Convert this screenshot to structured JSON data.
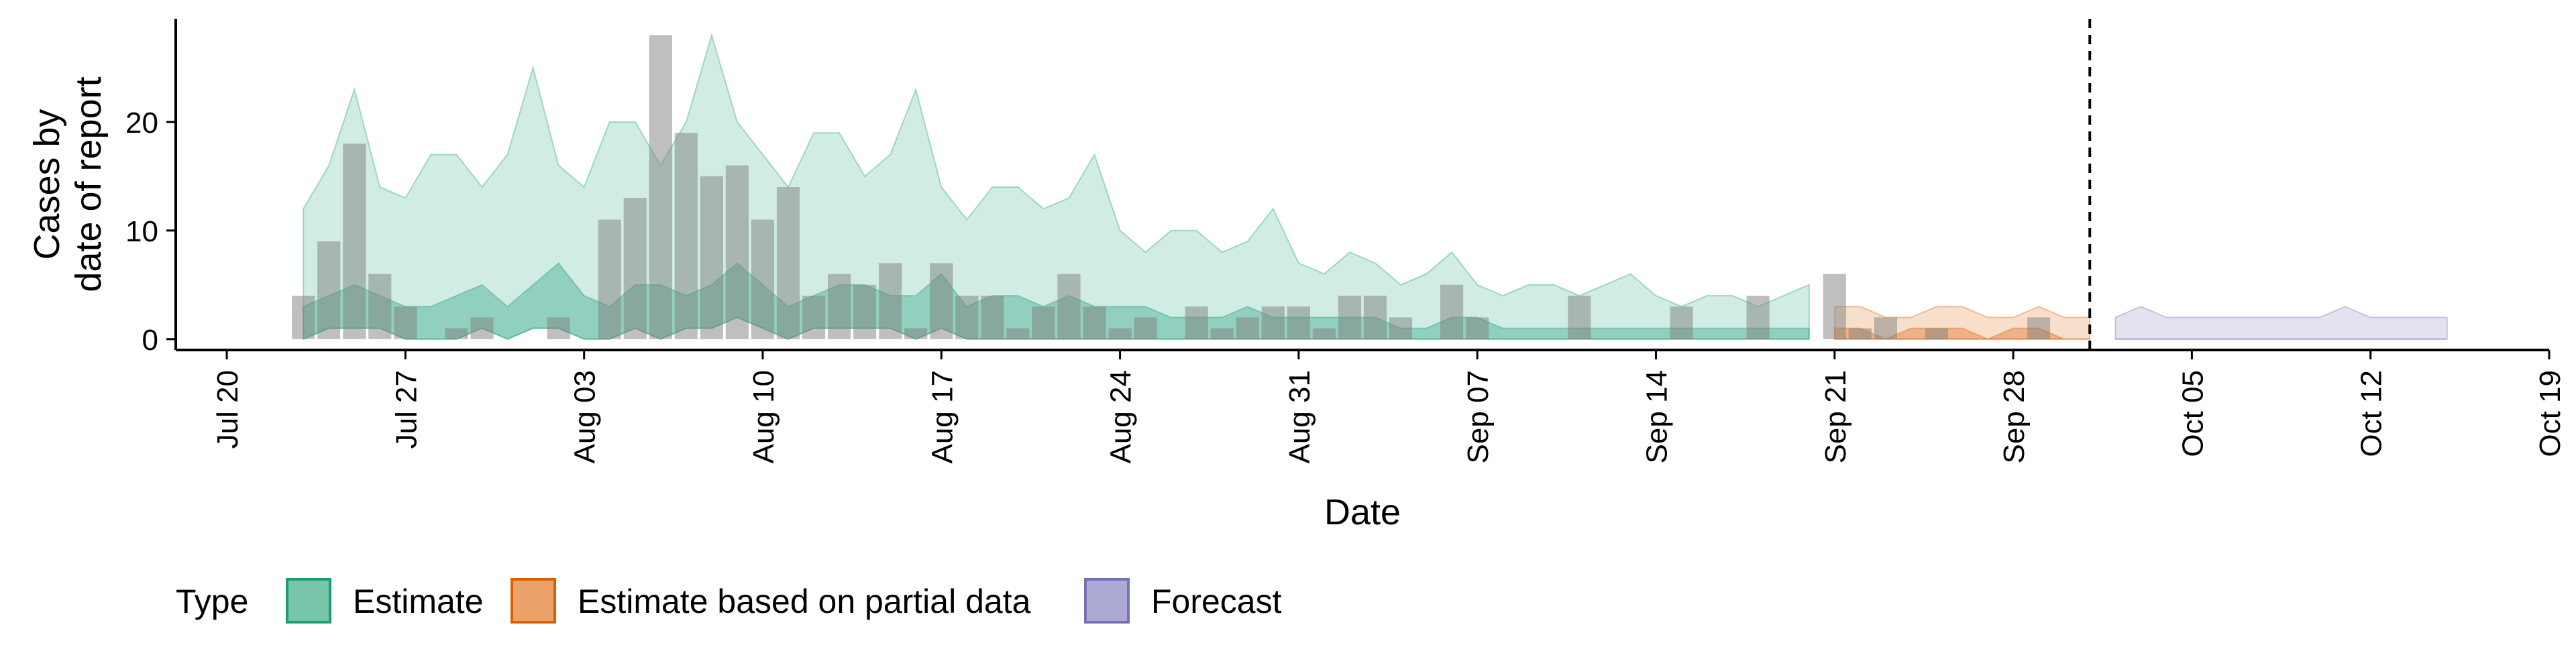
{
  "chart_data": {
    "type": "area",
    "xlabel": "Date",
    "ylabel_lines": [
      "Cases by",
      "date of report"
    ],
    "x_ticks": [
      "Jul 20",
      "Jul 27",
      "Aug 03",
      "Aug 10",
      "Aug 17",
      "Aug 24",
      "Aug 31",
      "Sep 07",
      "Sep 14",
      "Sep 21",
      "Sep 28",
      "Oct 05",
      "Oct 12",
      "Oct 19"
    ],
    "x_tick_dates": [
      "2020-07-20",
      "2020-07-27",
      "2020-08-03",
      "2020-08-10",
      "2020-08-17",
      "2020-08-24",
      "2020-08-31",
      "2020-09-07",
      "2020-09-14",
      "2020-09-21",
      "2020-09-28",
      "2020-10-05",
      "2020-10-12",
      "2020-10-19"
    ],
    "y_ticks": [
      0,
      10,
      20
    ],
    "xlim": [
      "2020-07-18",
      "2020-10-19"
    ],
    "ylim": [
      -1,
      29.5
    ],
    "forecast_date": "2020-10-01",
    "reported_cases": {
      "dates": [
        "2020-07-23",
        "2020-07-24",
        "2020-07-25",
        "2020-07-26",
        "2020-07-27",
        "2020-07-28",
        "2020-07-29",
        "2020-07-30",
        "2020-07-31",
        "2020-08-01",
        "2020-08-02",
        "2020-08-03",
        "2020-08-04",
        "2020-08-05",
        "2020-08-06",
        "2020-08-07",
        "2020-08-08",
        "2020-08-09",
        "2020-08-10",
        "2020-08-11",
        "2020-08-12",
        "2020-08-13",
        "2020-08-14",
        "2020-08-15",
        "2020-08-16",
        "2020-08-17",
        "2020-08-18",
        "2020-08-19",
        "2020-08-20",
        "2020-08-21",
        "2020-08-22",
        "2020-08-23",
        "2020-08-24",
        "2020-08-25",
        "2020-08-26",
        "2020-08-27",
        "2020-08-28",
        "2020-08-29",
        "2020-08-30",
        "2020-08-31",
        "2020-09-01",
        "2020-09-02",
        "2020-09-03",
        "2020-09-04",
        "2020-09-05",
        "2020-09-06",
        "2020-09-07",
        "2020-09-08",
        "2020-09-09",
        "2020-09-10",
        "2020-09-11",
        "2020-09-12",
        "2020-09-13",
        "2020-09-14",
        "2020-09-15",
        "2020-09-16",
        "2020-09-17",
        "2020-09-18",
        "2020-09-19",
        "2020-09-20",
        "2020-09-21",
        "2020-09-22",
        "2020-09-23",
        "2020-09-24",
        "2020-09-25",
        "2020-09-26",
        "2020-09-27",
        "2020-09-28",
        "2020-09-29",
        "2020-09-30"
      ],
      "values": [
        4,
        9,
        18,
        6,
        3,
        0,
        1,
        2,
        0,
        0,
        2,
        0,
        11,
        13,
        28,
        19,
        15,
        16,
        11,
        14,
        4,
        6,
        5,
        7,
        1,
        7,
        4,
        4,
        1,
        3,
        6,
        3,
        1,
        2,
        0,
        3,
        1,
        2,
        3,
        3,
        1,
        4,
        4,
        2,
        0,
        5,
        2,
        0,
        0,
        0,
        4,
        0,
        0,
        0,
        3,
        0,
        0,
        4,
        0,
        0,
        6,
        1,
        2,
        0,
        1,
        0,
        0,
        0,
        2,
        0
      ]
    },
    "series": [
      {
        "name": "Estimate",
        "color": "#1B9E77",
        "x": [
          "2020-07-23",
          "2020-07-24",
          "2020-07-25",
          "2020-07-26",
          "2020-07-27",
          "2020-07-28",
          "2020-07-29",
          "2020-07-30",
          "2020-07-31",
          "2020-08-01",
          "2020-08-02",
          "2020-08-03",
          "2020-08-04",
          "2020-08-05",
          "2020-08-06",
          "2020-08-07",
          "2020-08-08",
          "2020-08-09",
          "2020-08-10",
          "2020-08-11",
          "2020-08-12",
          "2020-08-13",
          "2020-08-14",
          "2020-08-15",
          "2020-08-16",
          "2020-08-17",
          "2020-08-18",
          "2020-08-19",
          "2020-08-20",
          "2020-08-21",
          "2020-08-22",
          "2020-08-23",
          "2020-08-24",
          "2020-08-25",
          "2020-08-26",
          "2020-08-27",
          "2020-08-28",
          "2020-08-29",
          "2020-08-30",
          "2020-08-31",
          "2020-09-01",
          "2020-09-02",
          "2020-09-03",
          "2020-09-04",
          "2020-09-05",
          "2020-09-06",
          "2020-09-07",
          "2020-09-08",
          "2020-09-09",
          "2020-09-10",
          "2020-09-11",
          "2020-09-12",
          "2020-09-13",
          "2020-09-14",
          "2020-09-15",
          "2020-09-16",
          "2020-09-17",
          "2020-09-18",
          "2020-09-19",
          "2020-09-20"
        ],
        "upper_90": [
          12,
          16,
          23,
          14,
          13,
          17,
          17,
          14,
          17,
          25,
          16,
          14,
          20,
          20,
          16,
          20,
          28,
          20,
          17,
          14,
          19,
          19,
          15,
          17,
          23,
          14,
          11,
          14,
          14,
          12,
          13,
          17,
          10,
          8,
          10,
          10,
          8,
          9,
          12,
          7,
          6,
          8,
          7,
          5,
          6,
          8,
          5,
          4,
          5,
          5,
          4,
          5,
          6,
          4,
          3,
          4,
          4,
          3,
          4,
          5
        ],
        "upper_50": [
          3,
          4,
          5,
          4,
          3,
          3,
          4,
          5,
          3,
          5,
          7,
          4,
          3,
          5,
          5,
          4,
          5,
          7,
          5,
          3,
          4,
          5,
          5,
          4,
          4,
          6,
          3,
          4,
          4,
          3,
          4,
          3,
          3,
          3,
          2,
          2,
          2,
          3,
          2,
          2,
          2,
          2,
          2,
          1,
          1,
          2,
          2,
          1,
          1,
          1,
          1,
          1,
          1,
          1,
          1,
          1,
          1,
          1,
          1,
          1
        ],
        "lower": [
          0,
          1,
          1,
          1,
          0,
          0,
          0,
          1,
          0,
          1,
          1,
          0,
          0,
          1,
          0,
          1,
          1,
          2,
          1,
          0,
          1,
          1,
          1,
          1,
          0,
          1,
          0,
          0,
          0,
          0,
          0,
          0,
          0,
          0,
          0,
          0,
          0,
          0,
          0,
          0,
          0,
          0,
          0,
          0,
          0,
          0,
          0,
          0,
          0,
          0,
          0,
          0,
          0,
          0,
          0,
          0,
          0,
          0,
          0,
          0
        ]
      },
      {
        "name": "Estimate based on partial data",
        "color": "#D95F02",
        "x": [
          "2020-09-21",
          "2020-09-22",
          "2020-09-23",
          "2020-09-24",
          "2020-09-25",
          "2020-09-26",
          "2020-09-27",
          "2020-09-28",
          "2020-09-29",
          "2020-09-30",
          "2020-10-01"
        ],
        "upper_90": [
          3,
          3,
          2,
          2,
          3,
          3,
          2,
          2,
          3,
          2,
          2
        ],
        "upper_50": [
          1,
          1,
          0,
          1,
          1,
          1,
          0,
          1,
          1,
          0,
          0
        ],
        "lower": [
          0,
          0,
          0,
          0,
          0,
          0,
          0,
          0,
          0,
          0,
          0
        ]
      },
      {
        "name": "Forecast",
        "color": "#7570B3",
        "x": [
          "2020-10-02",
          "2020-10-03",
          "2020-10-04",
          "2020-10-05",
          "2020-10-06",
          "2020-10-07",
          "2020-10-08",
          "2020-10-09",
          "2020-10-10",
          "2020-10-11",
          "2020-10-12",
          "2020-10-13",
          "2020-10-14",
          "2020-10-15"
        ],
        "upper_90": [
          2,
          3,
          2,
          2,
          2,
          2,
          2,
          2,
          2,
          3,
          2,
          2,
          2,
          2
        ],
        "upper_50": [
          0,
          0,
          0,
          0,
          0,
          0,
          0,
          0,
          0,
          0,
          0,
          0,
          0,
          0
        ],
        "lower": [
          0,
          0,
          0,
          0,
          0,
          0,
          0,
          0,
          0,
          0,
          0,
          0,
          0,
          0
        ]
      }
    ],
    "legend": {
      "title": "Type",
      "placement": "bottom-left",
      "entries": [
        {
          "label": "Estimate",
          "fill": "#79C5A9",
          "border": "#1B9E77"
        },
        {
          "label": "Estimate based on partial data",
          "fill": "#EBA16A",
          "border": "#D95F02"
        },
        {
          "label": "Forecast",
          "fill": "#ACA9D4",
          "border": "#7570B3"
        }
      ]
    },
    "grid": false
  }
}
